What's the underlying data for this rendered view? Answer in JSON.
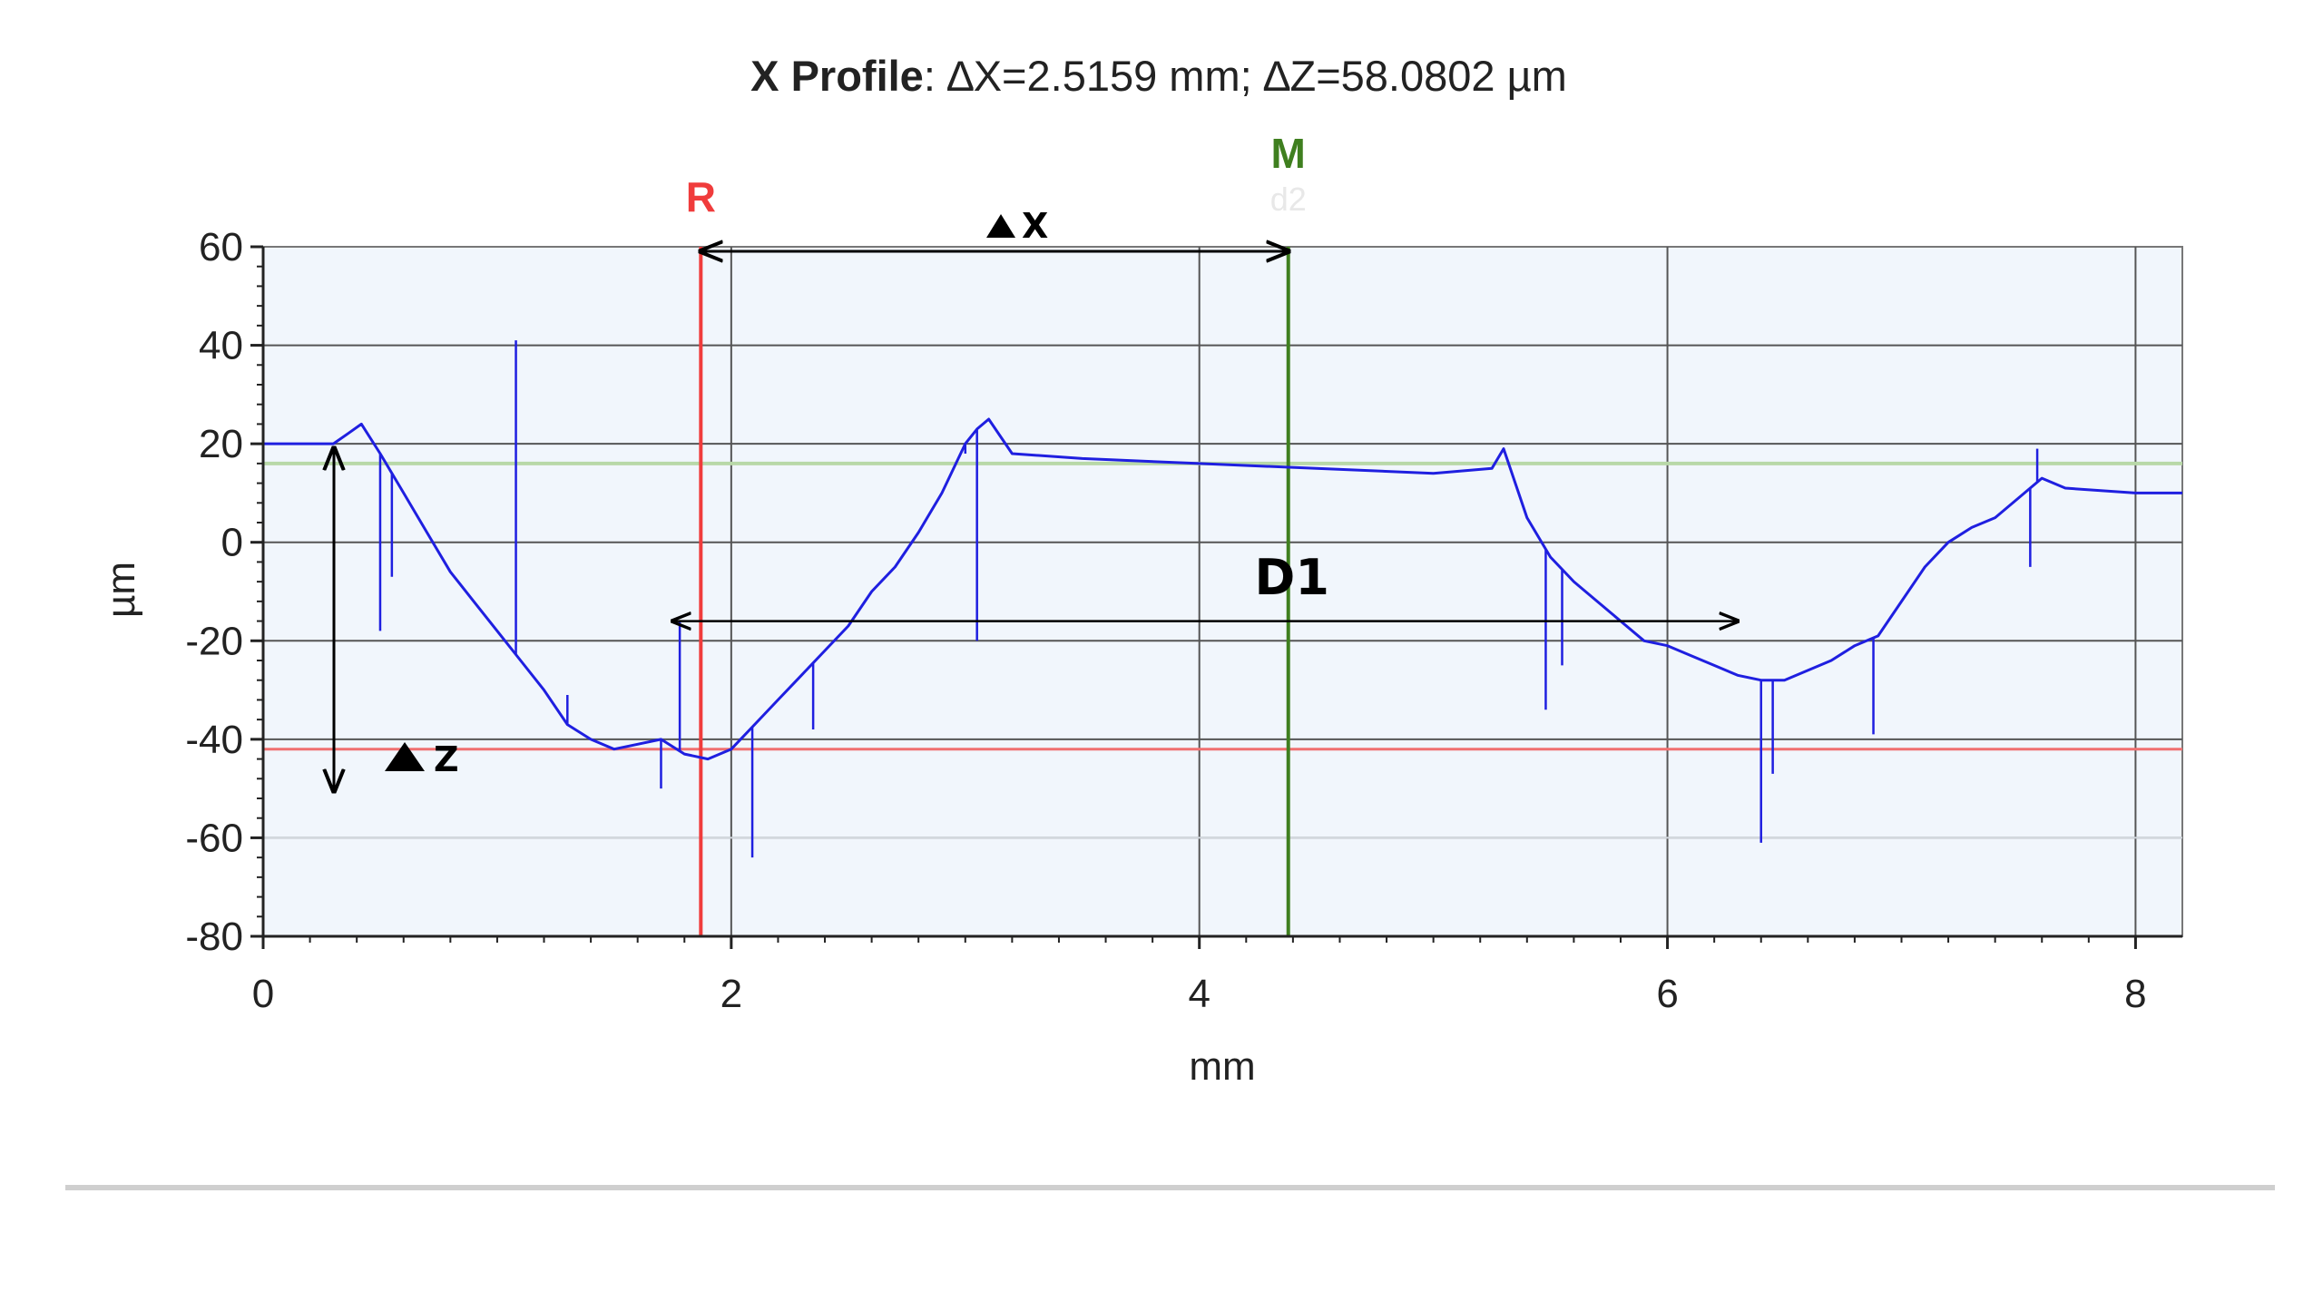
{
  "chart_data": {
    "type": "line",
    "title_bold": "X Profile",
    "title_rest": ": ∆X=2.5159 mm; ∆Z=58.0802 µm",
    "xlabel": "mm",
    "ylabel": "µm",
    "xlim": [
      0,
      8.2
    ],
    "ylim": [
      -80,
      60
    ],
    "x_ticks": [
      0,
      2,
      4,
      6,
      8
    ],
    "y_ticks": [
      60,
      40,
      20,
      0,
      -20,
      -40,
      -60,
      -80
    ],
    "x_tick_labels": [
      "0",
      "2",
      "4",
      "6",
      "8"
    ],
    "y_tick_labels": [
      "60",
      "40",
      "20",
      "0",
      "-20",
      "-40",
      "-60",
      "-80"
    ],
    "grid": true,
    "plot_background": "#f1f6fc",
    "series_color": "#1f1fe0",
    "series": [
      {
        "x": [
          0.0,
          0.15,
          0.3,
          0.36,
          0.42,
          0.5,
          0.6,
          0.7,
          0.8,
          0.9,
          1.0,
          1.1,
          1.2,
          1.3,
          1.4,
          1.5,
          1.6,
          1.7,
          1.8,
          1.9,
          2.0,
          2.1,
          2.2,
          2.3,
          2.4,
          2.5,
          2.6,
          2.7,
          2.8,
          2.9,
          3.0,
          3.05,
          3.1,
          3.2,
          3.5,
          4.0,
          4.5,
          5.0,
          5.25,
          5.3,
          5.4,
          5.5,
          5.6,
          5.7,
          5.8,
          5.9,
          6.0,
          6.1,
          6.2,
          6.3,
          6.4,
          6.5,
          6.6,
          6.7,
          6.8,
          6.9,
          7.0,
          7.1,
          7.2,
          7.3,
          7.4,
          7.5,
          7.6,
          7.7,
          8.0,
          8.2
        ],
        "y": [
          20,
          20,
          20,
          22,
          24,
          18,
          10,
          2,
          -6,
          -12,
          -18,
          -24,
          -30,
          -37,
          -40,
          -42,
          -41,
          -40,
          -43,
          -44,
          -42,
          -37,
          -32,
          -27,
          -22,
          -17,
          -10,
          -5,
          2,
          10,
          20,
          23,
          25,
          18,
          17,
          16,
          15,
          14,
          15,
          19,
          5,
          -3,
          -8,
          -12,
          -16,
          -20,
          -21,
          -23,
          -25,
          -27,
          -28,
          -28,
          -26,
          -24,
          -21,
          -19,
          -12,
          -5,
          0,
          3,
          5,
          9,
          13,
          11,
          10,
          10
        ]
      }
    ],
    "spikes": [
      {
        "x": 0.5,
        "y": -18
      },
      {
        "x": 0.55,
        "y": -7
      },
      {
        "x": 1.08,
        "y": 41
      },
      {
        "x": 1.3,
        "y": -31
      },
      {
        "x": 1.7,
        "y": -50
      },
      {
        "x": 1.78,
        "y": -16
      },
      {
        "x": 2.09,
        "y": -64
      },
      {
        "x": 2.35,
        "y": -38
      },
      {
        "x": 3.05,
        "y": -20
      },
      {
        "x": 3.0,
        "y": 18
      },
      {
        "x": 5.48,
        "y": -34
      },
      {
        "x": 5.55,
        "y": -25
      },
      {
        "x": 6.4,
        "y": -61
      },
      {
        "x": 6.45,
        "y": -47
      },
      {
        "x": 6.88,
        "y": -39
      },
      {
        "x": 7.55,
        "y": -5
      },
      {
        "x": 7.58,
        "y": 19
      }
    ],
    "markers": {
      "r": {
        "label": "R",
        "x": 1.87,
        "color": "#f03c3c"
      },
      "m": {
        "label": "M",
        "x": 4.38,
        "color": "#3f7f1f",
        "sublabel": "d2"
      }
    },
    "ref_lines": {
      "green_y": 16,
      "red_y": -42,
      "green_color": "#b8d8a8",
      "red_color": "#f07070"
    },
    "annotations": {
      "delta_x": "X",
      "delta_z": "Z",
      "d1": "D1",
      "d1_range": [
        1.75,
        6.3
      ],
      "d1_y": -16
    }
  }
}
